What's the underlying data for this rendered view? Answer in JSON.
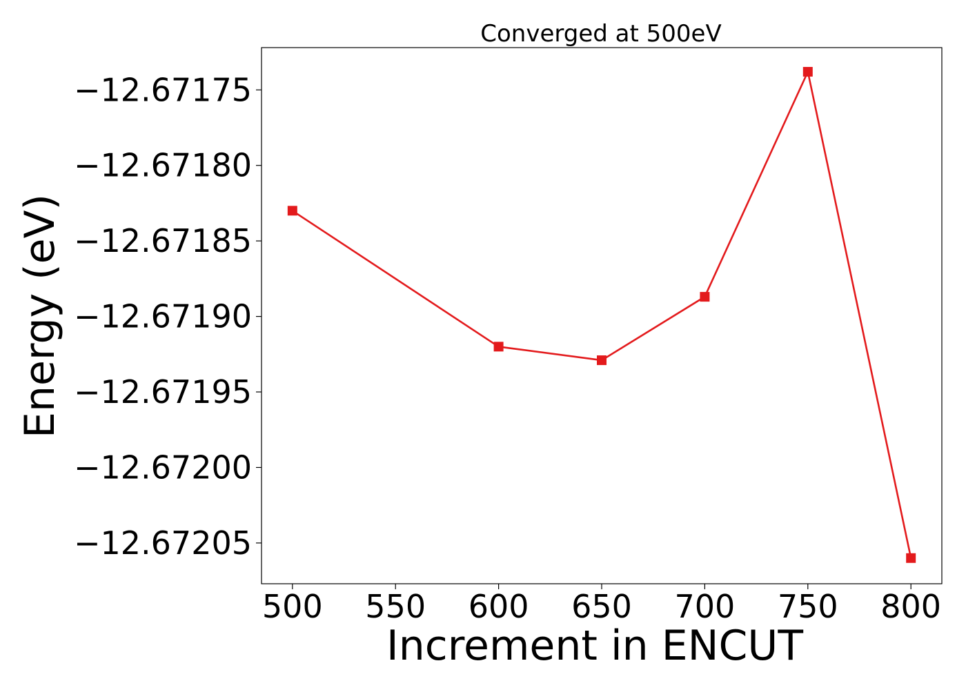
{
  "chart_data": {
    "type": "line",
    "title": "Converged at 500eV",
    "xlabel": "Increment in ENCUT",
    "ylabel": "Energy (eV)",
    "x": [
      500,
      600,
      650,
      700,
      750,
      800
    ],
    "series": [
      {
        "values": [
          -12.67183,
          -12.67192,
          -12.671929,
          -12.671887,
          -12.671738,
          -12.67206
        ],
        "color": "#e31a1c",
        "marker": "square"
      }
    ],
    "xlim": [
      485,
      815
    ],
    "ylim": [
      -12.672077,
      -12.671722
    ],
    "xticks": [
      500,
      550,
      600,
      650,
      700,
      750,
      800
    ],
    "xtick_labels": [
      "500",
      "550",
      "600",
      "650",
      "700",
      "750",
      "800"
    ],
    "yticks": [
      -12.67175,
      -12.6718,
      -12.67185,
      -12.6719,
      -12.67195,
      -12.672,
      -12.67205
    ],
    "ytick_labels": [
      "−12.67175",
      "−12.67180",
      "−12.67185",
      "−12.67190",
      "−12.67195",
      "−12.67200",
      "−12.67205"
    ],
    "grid": false,
    "legend": false
  }
}
